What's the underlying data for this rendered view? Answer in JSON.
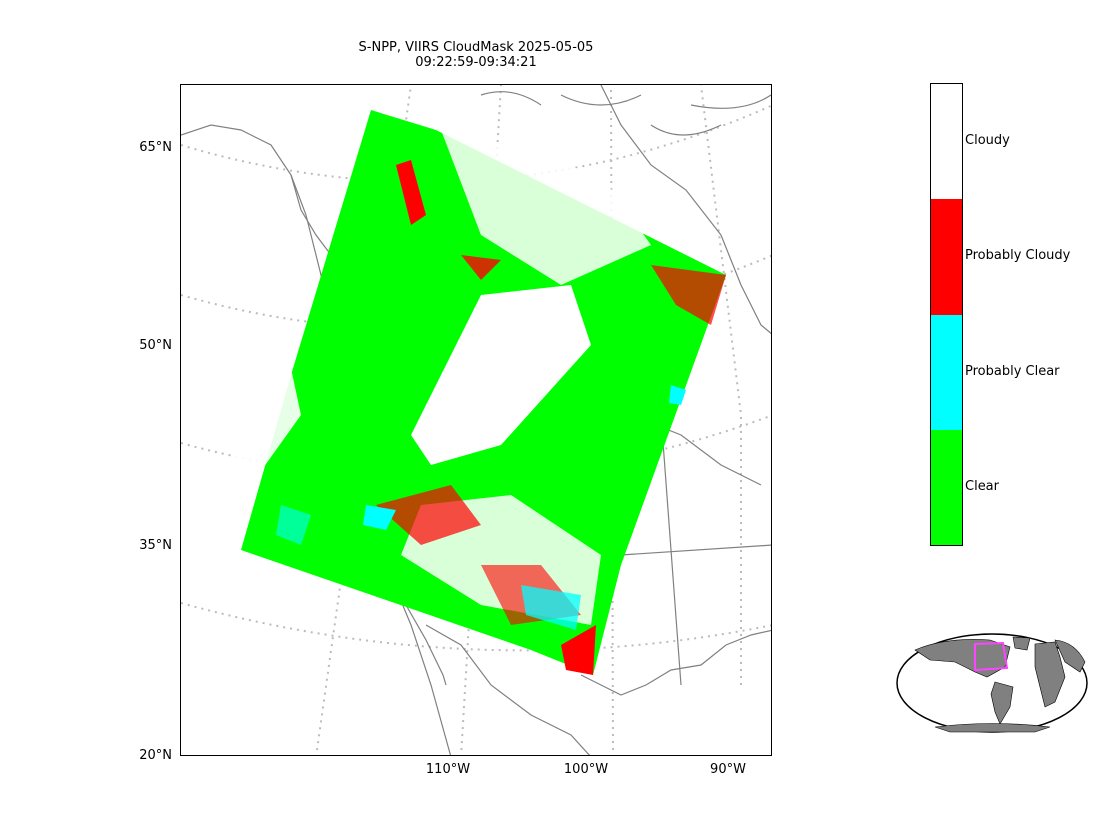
{
  "title": {
    "line1": "S-NPP, VIIRS CloudMask 2025-05-05",
    "line2": "09:22:59-09:34:21"
  },
  "map": {
    "lat_labels": [
      "65°N",
      "50°N",
      "35°N",
      "20°N"
    ],
    "lon_labels": [
      "110°W",
      "100°W",
      "90°W"
    ],
    "colors": {
      "coastline": "#808080",
      "graticule": "#bbbbbb",
      "clear": "#00ff00",
      "probably_clear": "#00ffff",
      "probably_cloudy": "#ff0000",
      "cloudy": "#ffffff"
    }
  },
  "colorbar": {
    "categories": [
      {
        "label": "Cloudy",
        "color": "#ffffff"
      },
      {
        "label": "Probably Cloudy",
        "color": "#ff0000"
      },
      {
        "label": "Probably Clear",
        "color": "#00ffff"
      },
      {
        "label": "Clear",
        "color": "#00ff00"
      }
    ]
  },
  "inset_globe": {
    "land_color": "#808080",
    "ocean_color": "#ffffff",
    "footprint_color": "#ff44ff"
  }
}
